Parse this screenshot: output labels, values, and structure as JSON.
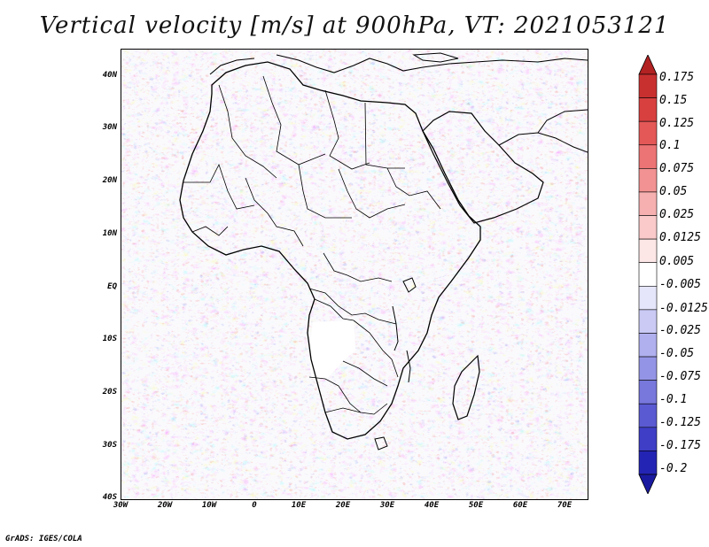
{
  "title": "Vertical velocity [m/s] at 900hPa, VT: 2021053121",
  "footer": "GrADS: IGES/COLA",
  "map": {
    "projection": "latlon",
    "lon_range": [
      -30,
      75
    ],
    "lat_range": [
      -40,
      45
    ],
    "lat_ticks": [
      "40N",
      "30N",
      "20N",
      "10N",
      "EQ",
      "10S",
      "20S",
      "30S",
      "40S"
    ],
    "lon_ticks": [
      "30W",
      "20W",
      "10W",
      "0",
      "10E",
      "20E",
      "30E",
      "40E",
      "50E",
      "60E",
      "70E"
    ],
    "field": "vertical velocity",
    "level": "900hPa",
    "valid_time": "2021053121",
    "missing_region": "southern Africa plateau (Angola/Zambia/Botswana)"
  },
  "colorbar": {
    "levels": [
      "0.175",
      "0.15",
      "0.125",
      "0.1",
      "0.075",
      "0.05",
      "0.025",
      "0.0125",
      "0.005",
      "-0.005",
      "-0.0125",
      "-0.025",
      "-0.05",
      "-0.075",
      "-0.1",
      "-0.125",
      "-0.175",
      "-0.2"
    ],
    "colors_top_to_bottom": [
      "#b22222",
      "#c83030",
      "#d84040",
      "#e45858",
      "#ec7474",
      "#f29292",
      "#f6b0b0",
      "#facaca",
      "#fde6e6",
      "#ffffff",
      "#e6e6fb",
      "#cacaf5",
      "#b0b0ef",
      "#9494e6",
      "#7777dc",
      "#5a5ad2",
      "#3e3ec6",
      "#2424b4",
      "#1a1aa0"
    ]
  },
  "colors": {
    "positive": "#e04848",
    "negative": "#5a5ad8",
    "coast": "#000000"
  }
}
